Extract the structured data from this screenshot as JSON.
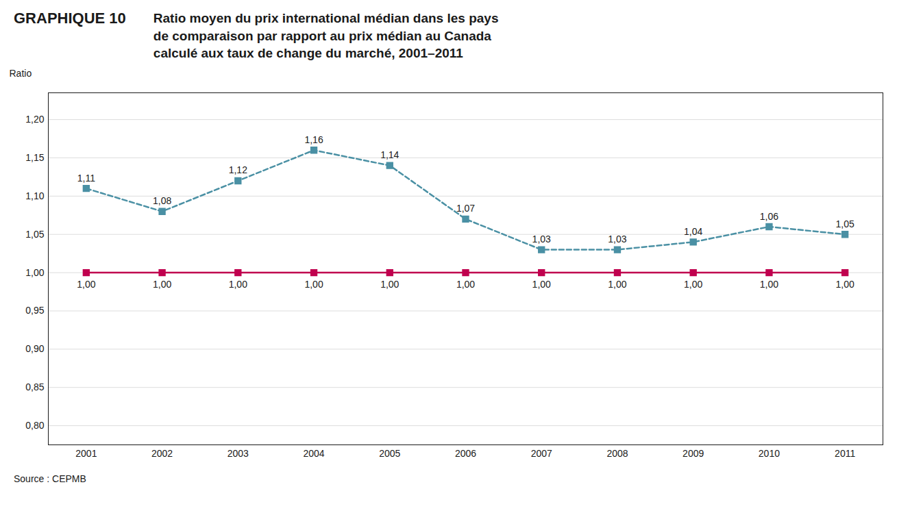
{
  "chart_data": {
    "type": "line",
    "title": "GRAPHIQUE 10",
    "subtitle": "Ratio moyen du prix international médian dans les pays\nde comparaison par rapport au prix médian au Canada\ncalculé aux taux de change du marché, 2001–2011",
    "source": "Source : CEPMB",
    "y_label": "Ratio",
    "x": [
      2001,
      2002,
      2003,
      2004,
      2005,
      2006,
      2007,
      2008,
      2009,
      2010,
      2011
    ],
    "series": [
      {
        "color": "#c0004e",
        "line_style": "solid",
        "marker": "square",
        "values": [
          1.0,
          1.0,
          1.0,
          1.0,
          1.0,
          1.0,
          1.0,
          1.0,
          1.0,
          1.0,
          1.0
        ],
        "value_labels": [
          "1,00",
          "1,00",
          "1,00",
          "1,00",
          "1,00",
          "1,00",
          "1,00",
          "1,00",
          "1,00",
          "1,00",
          "1,00"
        ]
      },
      {
        "color": "#4a90a4",
        "line_style": "dashed",
        "marker": "square",
        "values": [
          1.11,
          1.08,
          1.12,
          1.16,
          1.14,
          1.07,
          1.03,
          1.03,
          1.04,
          1.06,
          1.05
        ],
        "value_labels": [
          "1,11",
          "1,08",
          "1,12",
          "1,16",
          "1,14",
          "1,07",
          "1,03",
          "1,03",
          "1,04",
          "1,06",
          "1,05"
        ]
      }
    ],
    "xlim": [
      2000.5,
      2011.5
    ],
    "xticks": [
      2001,
      2002,
      2003,
      2004,
      2005,
      2006,
      2007,
      2008,
      2009,
      2010,
      2011
    ],
    "ylim": [
      0.775,
      1.235
    ],
    "yticks": [
      {
        "value": 0.8,
        "label": "0,80"
      },
      {
        "value": 0.85,
        "label": "0,85"
      },
      {
        "value": 0.9,
        "label": "0,90"
      },
      {
        "value": 0.95,
        "label": "0,95"
      },
      {
        "value": 1.0,
        "label": "1,00"
      },
      {
        "value": 1.05,
        "label": "1,05"
      },
      {
        "value": 1.1,
        "label": "1,10"
      },
      {
        "value": 1.15,
        "label": "1,15"
      },
      {
        "value": 1.2,
        "label": "1,20"
      }
    ],
    "grid": true,
    "data_labels": true
  }
}
